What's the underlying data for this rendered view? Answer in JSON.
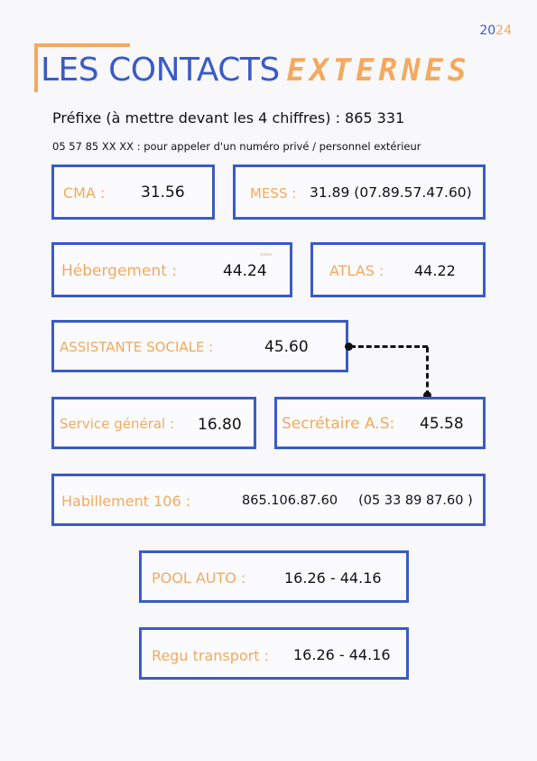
{
  "header": {
    "year_part1": "20",
    "year_part2": "24",
    "title_part1": "LES CONTACTS",
    "title_part2": "EXTERNES"
  },
  "info": {
    "prefix": "Préfixe (à mettre devant les 4 chiffres) :  865 331",
    "private_note": "05 57 85 XX XX : pour appeler d'un numéro privé / personnel extérieur"
  },
  "contacts": [
    {
      "label": "CMA :",
      "value": "31.56"
    },
    {
      "label": "MESS :",
      "value": "31.89 (07.89.57.47.60)"
    },
    {
      "label": "Hébergement  :",
      "value": "44.24"
    },
    {
      "label": "ATLAS :",
      "value": "44.22"
    },
    {
      "label": "ASSISTANTE SOCIALE :",
      "value": "45.60"
    },
    {
      "label": "Service général :",
      "value": "16.80"
    },
    {
      "label": "Secrétaire A.S:",
      "value": "45.58"
    },
    {
      "label": "Habillement 106  :",
      "value": "865.106.87.60     (05 33 89 87.60 )"
    },
    {
      "label": "POOL AUTO :",
      "value": "16.26 - 44.16"
    },
    {
      "label": "Regu transport :",
      "value": "16.26 - 44.16"
    }
  ],
  "colors": {
    "accent_blue": "#3a5bc7",
    "accent_orange": "#f4a95e"
  }
}
